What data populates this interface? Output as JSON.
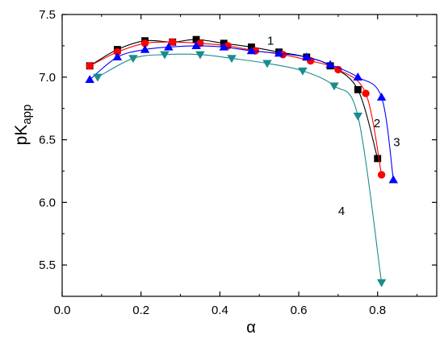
{
  "chart_data": {
    "type": "scatter",
    "title": "",
    "xlabel": "α",
    "ylabel": {
      "main": "pK",
      "sub": "app"
    },
    "xlim": [
      0.0,
      0.95
    ],
    "ylim": [
      5.25,
      7.5
    ],
    "xticks": [
      0.0,
      0.2,
      0.4,
      0.6,
      0.8
    ],
    "xtick_labels": [
      "0.0",
      "0.2",
      "0.4",
      "0.6",
      "0.8"
    ],
    "yticks": [
      5.5,
      6.0,
      6.5,
      7.0,
      7.5
    ],
    "ytick_labels": [
      "5.5",
      "6.0",
      "6.5",
      "7.0",
      "7.5"
    ],
    "grid": false,
    "legend": "none",
    "series": [
      {
        "label": "1",
        "marker": "square",
        "marker_color": "#000000",
        "line_color": "#000000",
        "x": [
          0.07,
          0.14,
          0.21,
          0.28,
          0.34,
          0.41,
          0.48,
          0.55,
          0.62,
          0.68,
          0.75,
          0.8
        ],
        "y": [
          7.09,
          7.22,
          7.29,
          7.28,
          7.3,
          7.27,
          7.24,
          7.2,
          7.16,
          7.09,
          6.9,
          6.35
        ],
        "label_x": 0.52,
        "label_y": 7.26
      },
      {
        "label": "2",
        "marker": "circle",
        "marker_color": "#ff0000",
        "line_color": "#ff0000",
        "x": [
          0.07,
          0.14,
          0.21,
          0.28,
          0.35,
          0.42,
          0.49,
          0.56,
          0.63,
          0.7,
          0.77,
          0.81
        ],
        "y": [
          7.09,
          7.2,
          7.27,
          7.28,
          7.27,
          7.25,
          7.21,
          7.18,
          7.13,
          7.06,
          6.87,
          6.22
        ],
        "label_x": 0.79,
        "label_y": 6.6
      },
      {
        "label": "3",
        "marker": "triangle-up",
        "marker_color": "#0000ff",
        "line_color": "#0000ff",
        "x": [
          0.07,
          0.14,
          0.21,
          0.27,
          0.34,
          0.41,
          0.48,
          0.55,
          0.62,
          0.68,
          0.75,
          0.81,
          0.84
        ],
        "y": [
          6.98,
          7.16,
          7.22,
          7.24,
          7.25,
          7.24,
          7.21,
          7.19,
          7.16,
          7.1,
          7.0,
          6.84,
          6.18
        ],
        "label_x": 0.84,
        "label_y": 6.45
      },
      {
        "label": "4",
        "marker": "triangle-down",
        "marker_color": "#1a8c8c",
        "line_color": "#1a8c8c",
        "x": [
          0.09,
          0.18,
          0.26,
          0.35,
          0.43,
          0.52,
          0.61,
          0.69,
          0.75,
          0.81
        ],
        "y": [
          7.0,
          7.15,
          7.18,
          7.18,
          7.15,
          7.11,
          7.05,
          6.93,
          6.69,
          5.36
        ],
        "label_x": 0.7,
        "label_y": 5.9
      }
    ]
  }
}
